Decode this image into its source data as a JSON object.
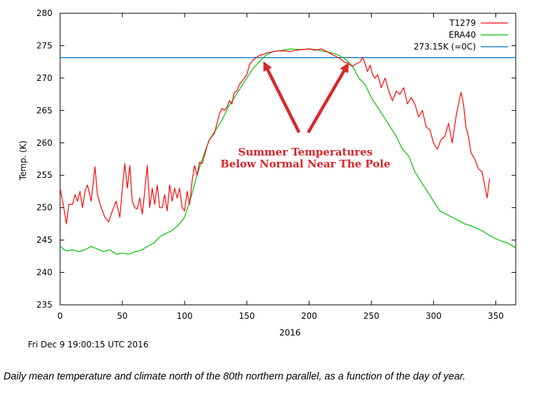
{
  "chart_data": {
    "type": "line",
    "title": "",
    "xlabel": "2016",
    "ylabel": "Temp. (K)",
    "xlim": [
      0,
      366
    ],
    "ylim": [
      235,
      280
    ],
    "x_ticks": [
      0,
      50,
      100,
      150,
      200,
      250,
      300,
      350
    ],
    "y_ticks": [
      235,
      240,
      245,
      250,
      255,
      260,
      265,
      270,
      275,
      280
    ],
    "grid": false,
    "legend_position": "top-right",
    "series": [
      {
        "name": "T1279",
        "color": "#ff0000",
        "x": [
          0,
          3,
          5,
          7,
          10,
          12,
          14,
          16,
          18,
          20,
          22,
          25,
          28,
          30,
          33,
          36,
          39,
          42,
          45,
          48,
          50,
          52,
          54,
          56,
          58,
          60,
          62,
          64,
          66,
          68,
          70,
          72,
          74,
          76,
          78,
          80,
          82,
          84,
          86,
          88,
          90,
          92,
          94,
          96,
          98,
          100,
          102,
          104,
          106,
          108,
          110,
          112,
          114,
          116,
          118,
          120,
          122,
          124,
          126,
          128,
          130,
          132,
          134,
          136,
          138,
          140,
          142,
          144,
          146,
          148,
          150,
          152,
          155,
          158,
          160,
          163,
          166,
          170,
          175,
          180,
          185,
          190,
          195,
          200,
          205,
          210,
          215,
          220,
          225,
          228,
          231,
          233,
          235,
          237,
          239,
          241,
          243,
          245,
          247,
          249,
          251,
          253,
          255,
          258,
          261,
          264,
          267,
          270,
          273,
          276,
          279,
          282,
          285,
          288,
          291,
          294,
          297,
          300,
          303,
          306,
          309,
          312,
          315,
          318,
          320,
          322,
          324,
          326,
          328,
          330,
          333,
          336,
          339,
          341,
          343,
          345
        ],
        "y": [
          253.0,
          250.0,
          247.5,
          250.5,
          250.5,
          252.0,
          251.0,
          252.5,
          250.0,
          252.5,
          253.5,
          251.0,
          256.3,
          252.0,
          250.0,
          248.5,
          247.8,
          249.5,
          251.0,
          248.5,
          253.0,
          256.8,
          253.0,
          256.5,
          251.0,
          250.0,
          249.8,
          251.5,
          249.0,
          252.5,
          256.5,
          250.0,
          253.0,
          250.5,
          253.5,
          250.0,
          250.0,
          252.0,
          249.5,
          253.5,
          251.0,
          253.0,
          251.5,
          253.0,
          250.0,
          249.5,
          252.5,
          250.5,
          254.0,
          256.5,
          255.0,
          257.0,
          256.8,
          258.0,
          259.5,
          260.5,
          261.0,
          261.5,
          263.0,
          264.5,
          265.3,
          265.0,
          265.5,
          266.5,
          266.0,
          267.8,
          268.0,
          269.0,
          269.5,
          270.0,
          270.5,
          272.0,
          272.8,
          273.2,
          273.5,
          273.6,
          273.9,
          274.0,
          274.2,
          274.2,
          274.1,
          274.3,
          274.4,
          274.5,
          274.3,
          274.5,
          274.0,
          273.5,
          273.0,
          272.5,
          272.3,
          272.0,
          271.8,
          272.1,
          272.3,
          272.5,
          273.2,
          272.2,
          271.0,
          272.0,
          270.5,
          270.0,
          270.5,
          268.5,
          270.0,
          268.0,
          266.5,
          268.0,
          267.5,
          268.5,
          266.0,
          267.0,
          266.0,
          264.0,
          265.0,
          262.5,
          262.0,
          260.0,
          259.0,
          260.5,
          261.0,
          263.0,
          260.0,
          264.0,
          266.0,
          267.8,
          266.0,
          262.5,
          261.0,
          258.5,
          257.5,
          256.0,
          255.5,
          253.5,
          251.5,
          254.5
        ]
      },
      {
        "name": "ERA40",
        "color": "#00c000",
        "x": [
          0,
          5,
          10,
          15,
          20,
          25,
          30,
          35,
          40,
          45,
          50,
          55,
          60,
          65,
          70,
          75,
          80,
          85,
          90,
          95,
          100,
          105,
          110,
          115,
          120,
          125,
          130,
          135,
          140,
          145,
          150,
          155,
          160,
          165,
          170,
          175,
          180,
          185,
          190,
          195,
          200,
          205,
          210,
          215,
          220,
          225,
          230,
          235,
          240,
          245,
          250,
          255,
          260,
          265,
          270,
          275,
          280,
          285,
          290,
          295,
          300,
          305,
          310,
          315,
          320,
          325,
          330,
          335,
          340,
          345,
          350,
          355,
          360,
          366
        ],
        "y": [
          244.0,
          243.3,
          243.5,
          243.2,
          243.5,
          244.0,
          243.6,
          243.2,
          243.5,
          242.8,
          243.0,
          242.8,
          243.2,
          243.4,
          244.0,
          244.5,
          245.5,
          246.0,
          246.5,
          247.3,
          248.5,
          251.5,
          255.0,
          258.0,
          260.5,
          262.0,
          263.5,
          265.5,
          267.0,
          268.5,
          270.0,
          271.5,
          272.5,
          273.5,
          274.0,
          274.2,
          274.3,
          274.5,
          274.4,
          274.4,
          274.5,
          274.4,
          274.2,
          274.0,
          273.8,
          273.4,
          272.8,
          271.8,
          270.0,
          269.0,
          267.0,
          265.5,
          264.0,
          262.5,
          261.0,
          259.0,
          258.0,
          255.5,
          254.0,
          252.5,
          251.0,
          249.5,
          249.0,
          248.5,
          248.0,
          247.5,
          247.2,
          246.8,
          246.3,
          245.7,
          245.2,
          244.8,
          244.5,
          243.8
        ]
      },
      {
        "name": "273.15K (=0C)",
        "color": "#0070c0",
        "x": [
          0,
          366
        ],
        "y": [
          273.15,
          273.15
        ]
      }
    ],
    "annotation": {
      "lines": [
        "Summer Temperatures",
        "Below Normal Near The Pole"
      ],
      "color": "#d9262a",
      "arrow_targets": [
        [
          165,
          272.8
        ],
        [
          230,
          272.6
        ]
      ]
    }
  },
  "timestamp": "Fri Dec  9 19:00:15 UTC 2016",
  "caption": "Daily mean temperature and climate north of the 80th northern parallel, as a function of the day of year."
}
